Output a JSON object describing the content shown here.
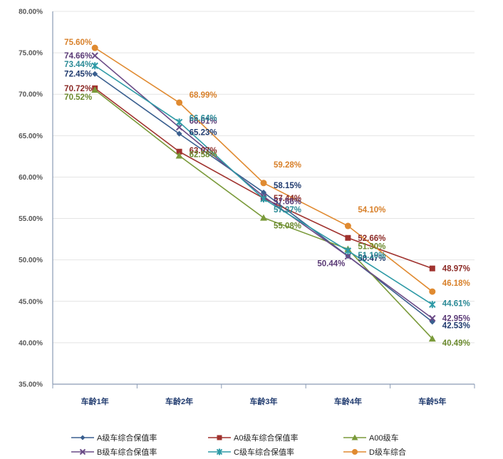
{
  "chart_data": {
    "type": "line",
    "categories": [
      "车龄1年",
      "车龄2年",
      "车龄3年",
      "车龄4年",
      "车龄5年"
    ],
    "ylim": [
      35,
      80
    ],
    "yticks": [
      "35.00%",
      "40.00%",
      "45.00%",
      "50.00%",
      "55.00%",
      "60.00%",
      "65.00%",
      "70.00%",
      "75.00%",
      "80.00%"
    ],
    "grid": true,
    "legend_position": "bottom",
    "series": [
      {
        "name": "A级车综合保值率",
        "color": "#3a5f8f",
        "label_color": "#1f3a6e",
        "marker": "diamond",
        "values": [
          72.45,
          65.23,
          58.15,
          50.47,
          42.53
        ],
        "labels": [
          "72.45%",
          "65.23%",
          "58.15%",
          "50.47%",
          "42.53%"
        ]
      },
      {
        "name": "A0级车综合保值率",
        "color": "#a0322e",
        "label_color": "#8b2a26",
        "marker": "square",
        "values": [
          70.72,
          63.07,
          57.44,
          52.66,
          48.97
        ],
        "labels": [
          "70.72%",
          "63.07%",
          "57.44%",
          "52.66%",
          "48.97%"
        ]
      },
      {
        "name": "A00级车",
        "color": "#7a9a3a",
        "label_color": "#6b8a2e",
        "marker": "triangle",
        "values": [
          70.52,
          62.58,
          55.08,
          51.3,
          40.49
        ],
        "labels": [
          "70.52%",
          "62.58%",
          "55.08%",
          "51.30%",
          "40.49%"
        ]
      },
      {
        "name": "B级车综合保值率",
        "color": "#6a4a86",
        "label_color": "#5a3a76",
        "marker": "x",
        "values": [
          74.66,
          66.01,
          57.66,
          50.44,
          42.95
        ],
        "labels": [
          "74.66%",
          "66.01%",
          "57.66%",
          "50.44%",
          "42.95%"
        ]
      },
      {
        "name": "C级车综合保值率",
        "color": "#2e9aa6",
        "label_color": "#2a8a96",
        "marker": "star",
        "values": [
          73.44,
          66.64,
          57.37,
          51.1,
          44.61
        ],
        "labels": [
          "73.44%",
          "66.64%",
          "57.37%",
          "51.10%",
          "44.61%"
        ]
      },
      {
        "name": "D级车综合",
        "color": "#e08a30",
        "label_color": "#d8802a",
        "marker": "circle",
        "values": [
          75.6,
          68.99,
          59.28,
          54.1,
          46.18
        ],
        "labels": [
          "75.60%",
          "68.99%",
          "59.28%",
          "54.10%",
          "46.18%"
        ]
      }
    ]
  }
}
